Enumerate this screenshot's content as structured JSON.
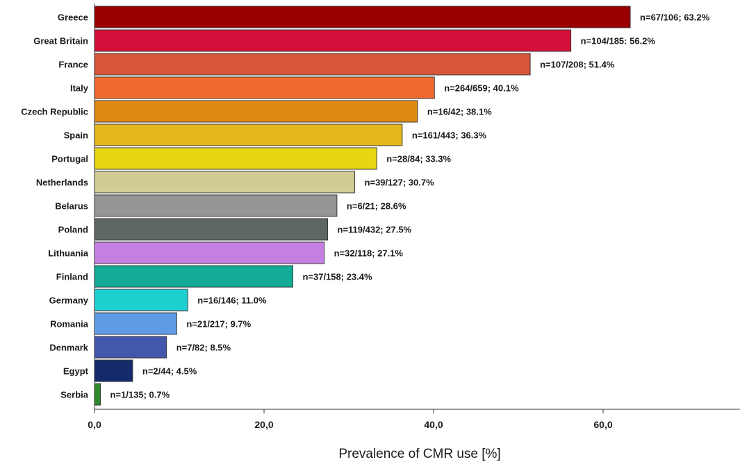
{
  "chart_data": {
    "type": "bar",
    "orientation": "horizontal",
    "title": "",
    "xlabel": "Prevalence of CMR use [%]",
    "ylabel": "",
    "xlim": [
      0,
      77
    ],
    "xticks": [
      0,
      20,
      40,
      60
    ],
    "xtick_labels": [
      "0,0",
      "20,0",
      "40,0",
      "60,0"
    ],
    "grid": false,
    "legend": "none",
    "categories": [
      "Greece",
      "Great Britain",
      "France",
      "Italy",
      "Czech Republic",
      "Spain",
      "Portugal",
      "Netherlands",
      "Belarus",
      "Poland",
      "Lithuania",
      "Finland",
      "Germany",
      "Romania",
      "Denmark",
      "Egypt",
      "Serbia"
    ],
    "values": [
      63.2,
      56.2,
      51.4,
      40.1,
      38.1,
      36.3,
      33.3,
      30.7,
      28.6,
      27.5,
      27.1,
      23.4,
      11.0,
      9.7,
      8.5,
      4.5,
      0.7
    ],
    "data_labels": [
      "n=67/106; 63.2%",
      "n=104/185: 56.2%",
      "n=107/208; 51.4%",
      "n=264/659; 40.1%",
      "n=16/42; 38.1%",
      "n=161/443; 36.3%",
      "n=28/84; 33.3%",
      "n=39/127; 30.7%",
      "n=6/21; 28.6%",
      "n=119/432; 27.5%",
      "n=32/118; 27.1%",
      "n=37/158; 23.4%",
      "n=16/146; 11.0%",
      "n=21/217; 9.7%",
      "n=7/82; 8.5%",
      "n=2/44; 4.5%",
      "n=1/135; 0.7%"
    ],
    "colors": [
      "#990000",
      "#d40f3a",
      "#d75539",
      "#f06a30",
      "#de8a14",
      "#e3b61c",
      "#e8d710",
      "#d1cc94",
      "#969696",
      "#5d6862",
      "#c57fe2",
      "#13ac97",
      "#1ecfd0",
      "#5e9de6",
      "#4357ad",
      "#142a6a",
      "#2f8a2f"
    ]
  }
}
